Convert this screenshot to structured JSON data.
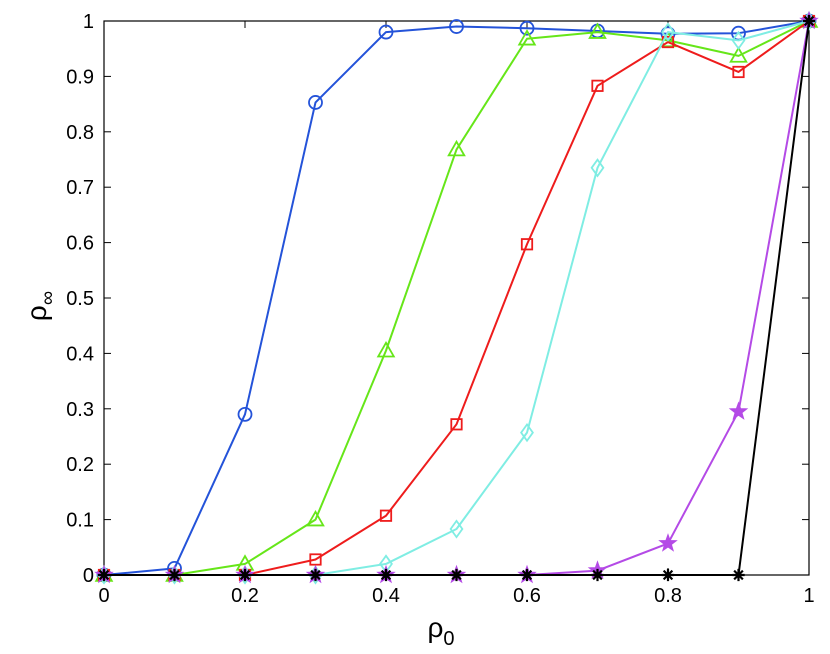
{
  "chart_data": {
    "type": "line",
    "xlabel": {
      "main": "ρ",
      "sub": "0"
    },
    "ylabel": {
      "main": "ρ",
      "sub": "∞"
    },
    "xlim": [
      0,
      1
    ],
    "ylim": [
      0,
      1
    ],
    "x_ticks": [
      0,
      0.2,
      0.4,
      0.6,
      0.8,
      1
    ],
    "x_tick_labels": [
      "0",
      "0.2",
      "0.4",
      "0.6",
      "0.8",
      "1"
    ],
    "y_ticks": [
      0,
      0.1,
      0.2,
      0.3,
      0.4,
      0.5,
      0.6,
      0.7,
      0.8,
      0.9,
      1
    ],
    "y_tick_labels": [
      "0",
      "0.1",
      "0.2",
      "0.3",
      "0.4",
      "0.5",
      "0.6",
      "0.7",
      "0.8",
      "0.9",
      "1"
    ],
    "grid": false,
    "x": [
      0,
      0.1,
      0.2,
      0.3,
      0.4,
      0.5,
      0.6,
      0.7,
      0.8,
      0.9,
      1
    ],
    "series": [
      {
        "color": "#2453d9",
        "marker": "circle",
        "values": [
          0,
          0.012,
          0.29,
          0.853,
          0.98,
          0.99,
          0.987,
          0.982,
          0.977,
          0.978,
          1
        ]
      },
      {
        "color": "#66e619",
        "marker": "triangle",
        "values": [
          0,
          0,
          0.02,
          0.1,
          0.405,
          0.768,
          0.968,
          0.98,
          0.965,
          0.937,
          1
        ]
      },
      {
        "color": "#ee1c1c",
        "marker": "square",
        "values": [
          0,
          0,
          0,
          0.028,
          0.107,
          0.272,
          0.597,
          0.883,
          0.962,
          0.908,
          1
        ]
      },
      {
        "color": "#7fede3",
        "marker": "diamond",
        "values": [
          0,
          0,
          0,
          0,
          0.02,
          0.083,
          0.257,
          0.735,
          0.98,
          0.965,
          1
        ]
      },
      {
        "color": "#b44ae6",
        "marker": "star",
        "values": [
          0,
          0,
          0,
          0,
          0,
          0,
          0,
          0.008,
          0.057,
          0.295,
          1
        ]
      },
      {
        "color": "#000000",
        "marker": "asterisk",
        "values": [
          0,
          0,
          0,
          0,
          0,
          0,
          0,
          0,
          0,
          0,
          1
        ]
      }
    ]
  }
}
